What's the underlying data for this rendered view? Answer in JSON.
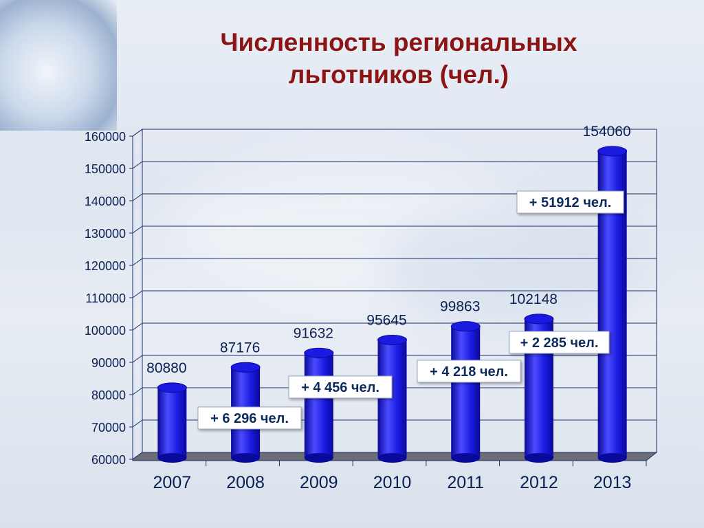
{
  "slide": {
    "title_line1": "Численность региональных",
    "title_line2": "льготников (чел.)"
  },
  "colors": {
    "title": "#8b1414",
    "bar": "#1a1ae0",
    "bar_dark": "#0a0a9a",
    "bar_light": "#4b4bff",
    "callout_text": "#0b2a5c"
  },
  "chart_data": {
    "type": "bar",
    "title": "Численность региональных льготников (чел.)",
    "categories": [
      "2007",
      "2008",
      "2009",
      "2010",
      "2011",
      "2012",
      "2013"
    ],
    "values": [
      80880,
      87176,
      91632,
      95645,
      99863,
      102148,
      154060
    ],
    "value_labels": [
      "80880",
      "87176",
      "91632",
      "95645",
      "99863",
      "102148",
      "154060"
    ],
    "ylim": [
      60000,
      160000
    ],
    "yticks": [
      "60000",
      "70000",
      "80000",
      "90000",
      "100000",
      "110000",
      "120000",
      "130000",
      "140000",
      "150000",
      "160000"
    ],
    "grid": true,
    "annotations": [
      {
        "after_category": "2008",
        "text": "+ 6 296 чел."
      },
      {
        "after_category": "2009",
        "text": "+ 4 456 чел."
      },
      {
        "after_category": "2011",
        "text": "+ 4 218 чел."
      },
      {
        "after_category": "2012",
        "text": "+ 2 285 чел."
      },
      {
        "after_category": "2013",
        "text": "+ 51912 чел."
      }
    ]
  }
}
